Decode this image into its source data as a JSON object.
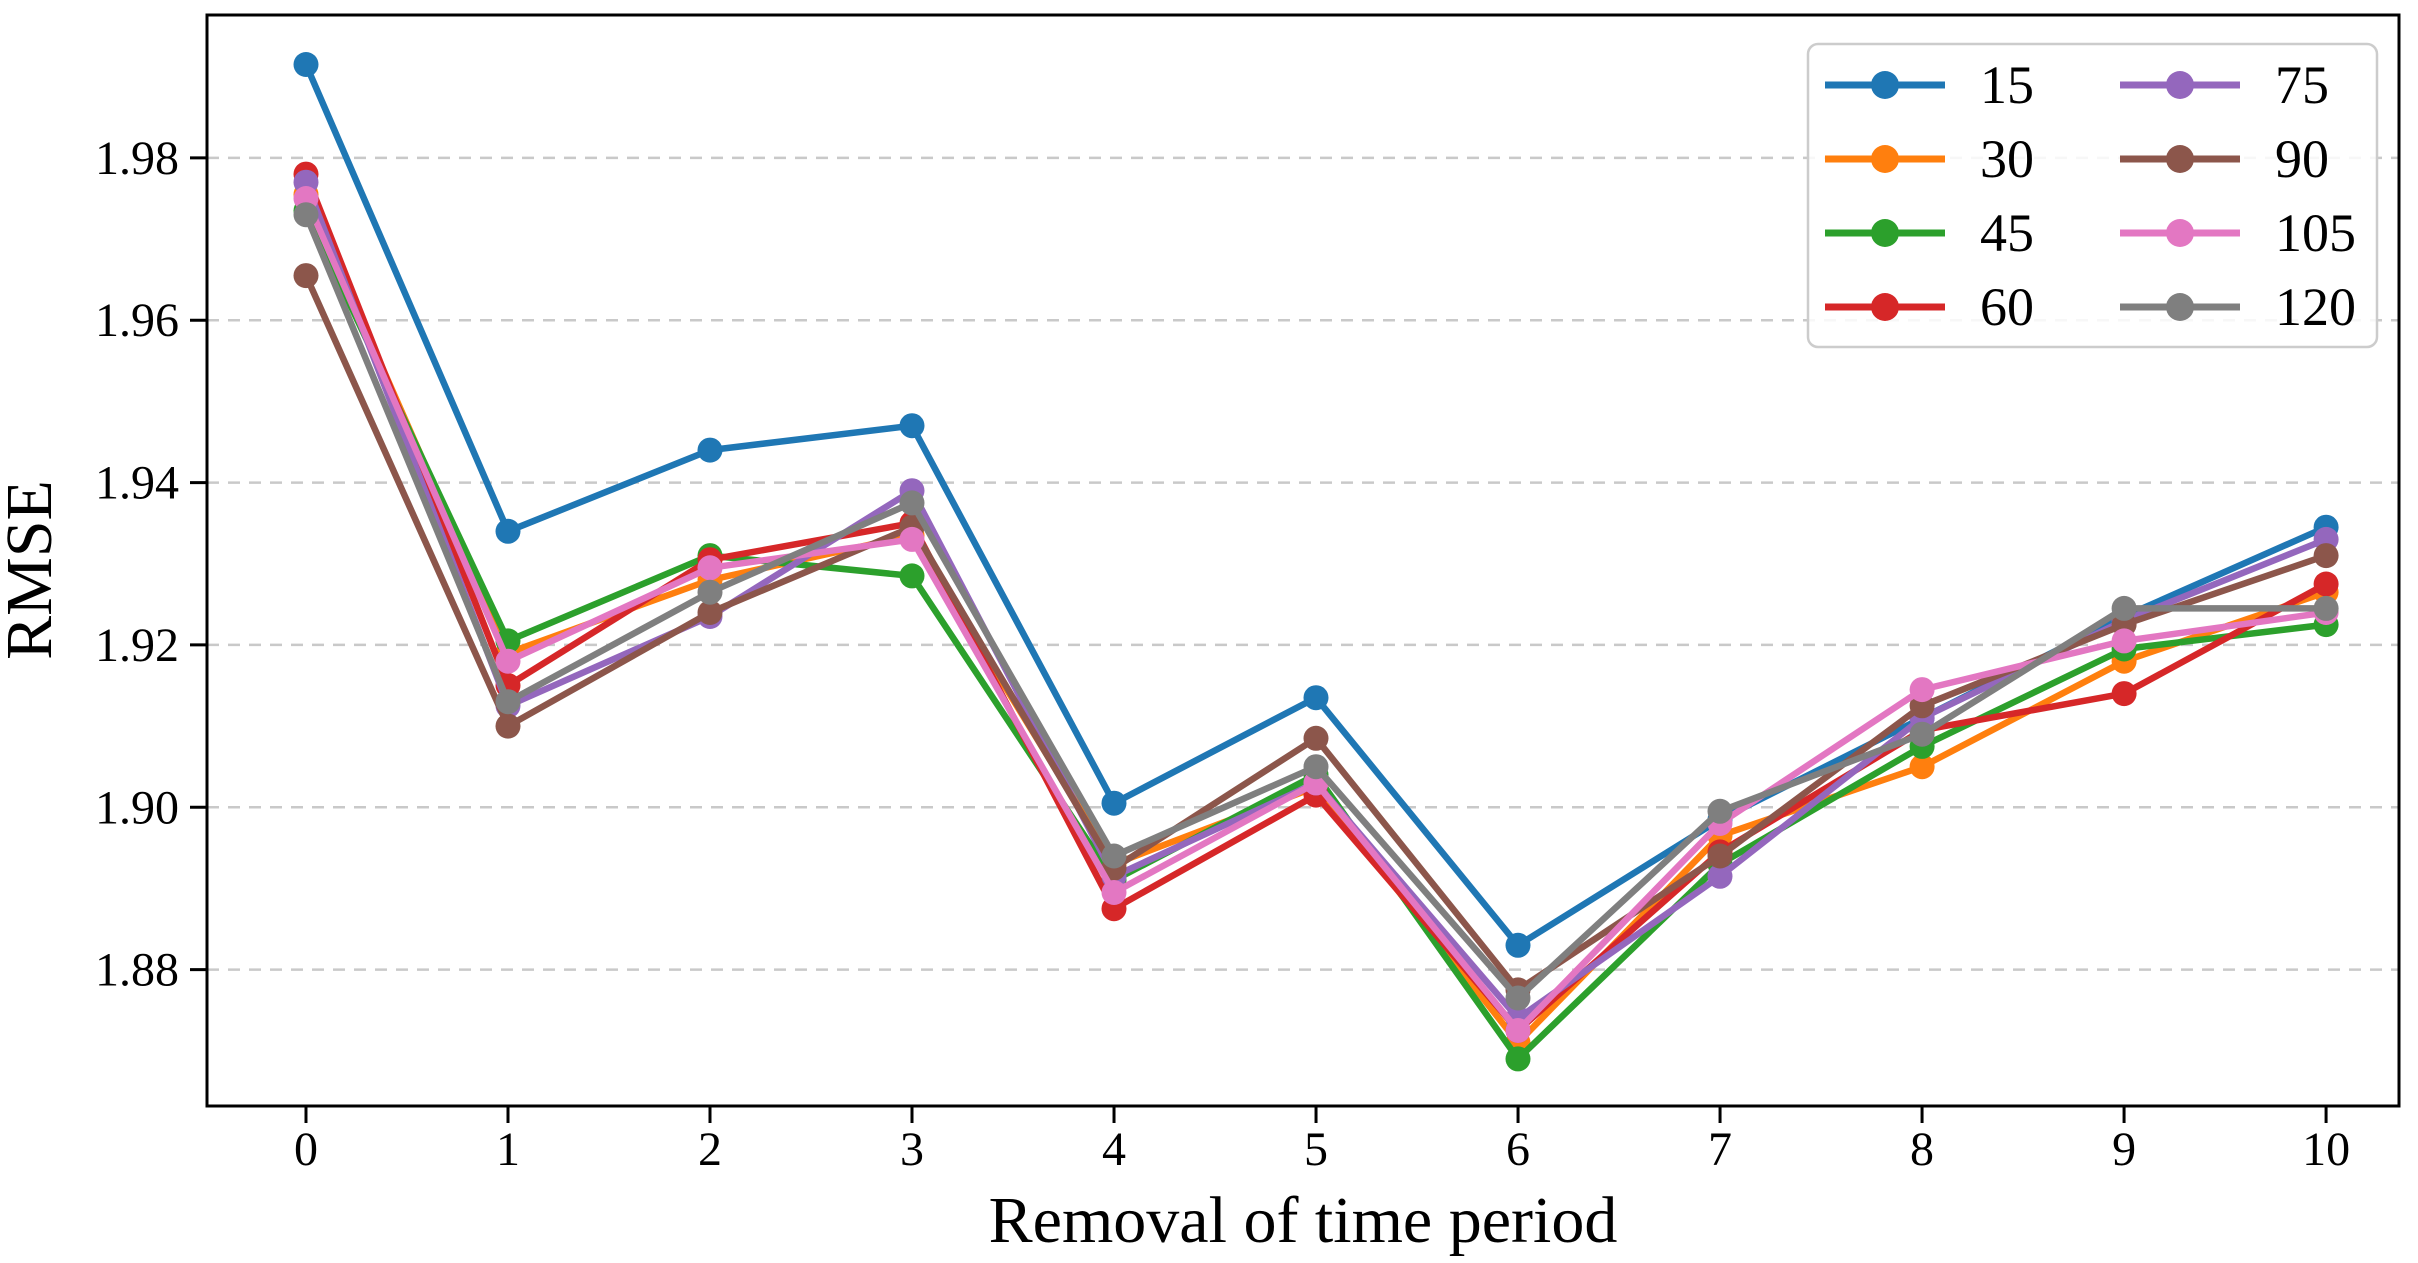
{
  "figure": {
    "background": "#ffffff",
    "description": "Line chart of RMSE versus removal of time period for eight parameter settings"
  },
  "colors": {
    "spine": "#000000",
    "grid": "#c9c9c9",
    "tick_text": "#000000",
    "legend_border": "#cccccc",
    "legend_fill": "rgba(255,255,255,0.85)"
  },
  "chart_data": {
    "type": "line",
    "title": "",
    "xlabel": "Removal of time period",
    "ylabel": "RMSE",
    "x": [
      0,
      1,
      2,
      3,
      4,
      5,
      6,
      7,
      8,
      9,
      10
    ],
    "x_tick_labels": [
      "0",
      "1",
      "2",
      "3",
      "4",
      "5",
      "6",
      "7",
      "8",
      "9",
      "10"
    ],
    "y_ticks": [
      1.88,
      1.9,
      1.92,
      1.94,
      1.96,
      1.98
    ],
    "y_tick_labels": [
      "1.88",
      "1.90",
      "1.92",
      "1.94",
      "1.96",
      "1.98"
    ],
    "xlim": [
      -0.49,
      10.361
    ],
    "ylim": [
      1.8632,
      1.9976
    ],
    "grid": "horizontal-dashed",
    "legend_position": "upper-right",
    "legend_columns": 2,
    "marker": "circle",
    "series": [
      {
        "name": "15",
        "color": "#1f77b4",
        "values": [
          1.9915,
          1.934,
          1.944,
          1.947,
          1.9005,
          1.9135,
          1.883,
          1.8985,
          1.911,
          1.9235,
          1.9345
        ]
      },
      {
        "name": "30",
        "color": "#ff7f0e",
        "values": [
          1.9755,
          1.919,
          1.928,
          1.9335,
          1.893,
          1.9025,
          1.871,
          1.8965,
          1.905,
          1.918,
          1.9265
        ]
      },
      {
        "name": "45",
        "color": "#2ca02c",
        "values": [
          1.9735,
          1.9205,
          1.931,
          1.9285,
          1.891,
          1.904,
          1.869,
          1.893,
          1.9075,
          1.9195,
          1.9225
        ]
      },
      {
        "name": "60",
        "color": "#d62728",
        "values": [
          1.978,
          1.915,
          1.9305,
          1.935,
          1.8875,
          1.9015,
          1.8725,
          1.8945,
          1.9095,
          1.914,
          1.9275
        ]
      },
      {
        "name": "75",
        "color": "#9467bd",
        "values": [
          1.977,
          1.9125,
          1.9235,
          1.939,
          1.8915,
          1.903,
          1.874,
          1.8915,
          1.911,
          1.923,
          1.933
        ]
      },
      {
        "name": "90",
        "color": "#8c564b",
        "values": [
          1.9655,
          1.91,
          1.924,
          1.9345,
          1.8925,
          1.9085,
          1.8775,
          1.894,
          1.9125,
          1.9225,
          1.931
        ]
      },
      {
        "name": "105",
        "color": "#e377c2",
        "values": [
          1.975,
          1.918,
          1.9295,
          1.933,
          1.8895,
          1.903,
          1.8725,
          1.898,
          1.9145,
          1.9205,
          1.924
        ]
      },
      {
        "name": "120",
        "color": "#7f7f7f",
        "values": [
          1.973,
          1.913,
          1.9265,
          1.9375,
          1.894,
          1.905,
          1.8765,
          1.8995,
          1.909,
          1.9245,
          1.9245
        ]
      }
    ]
  }
}
